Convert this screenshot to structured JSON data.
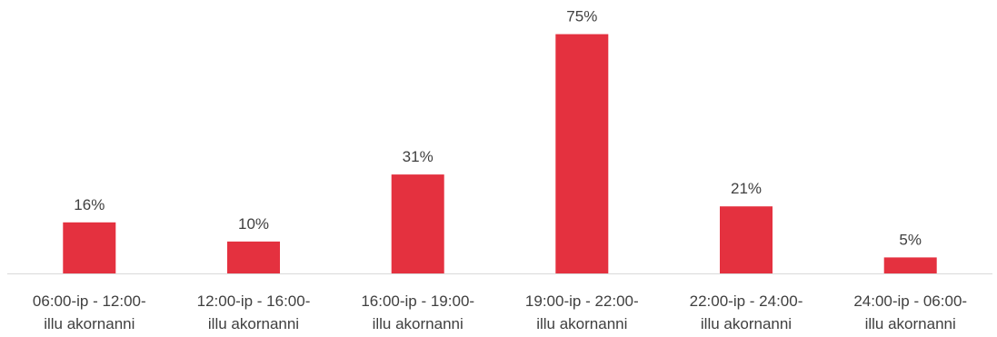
{
  "chart_data": {
    "type": "bar",
    "categories": [
      [
        "06:00-ip - 12:00-",
        "illu akornanni"
      ],
      [
        "12:00-ip - 16:00-",
        "illu akornanni"
      ],
      [
        "16:00-ip - 19:00-",
        "illu akornanni"
      ],
      [
        "19:00-ip - 22:00-",
        "illu akornanni"
      ],
      [
        "22:00-ip - 24:00-",
        "illu akornanni"
      ],
      [
        "24:00-ip - 06:00-",
        "illu akornanni"
      ]
    ],
    "values": [
      16,
      10,
      31,
      75,
      21,
      5
    ],
    "data_labels": [
      "16%",
      "10%",
      "31%",
      "75%",
      "21%",
      "5%"
    ],
    "unit": "%",
    "ylim": [
      0,
      80
    ],
    "grid": false,
    "legend": "none",
    "title": "",
    "xlabel": "",
    "ylabel": ""
  },
  "colors": {
    "bar": "#e4313f",
    "axis": "#d9d9d9",
    "text": "#404040"
  }
}
